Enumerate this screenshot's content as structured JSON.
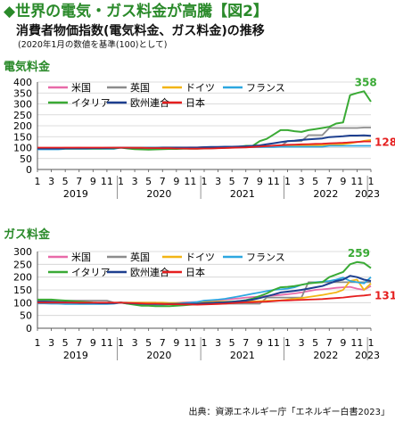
{
  "header": {
    "title": "◆世界の電気・ガス料金が高騰【図2】",
    "subtitle": "消費者物価指数(電気料金、ガス料金)の推移",
    "note": "(2020年1月の数値を基準(100)として)"
  },
  "source": "出典：資源エネルギー庁「エネルギー白書2023」",
  "colors": {
    "米国": "#e86aa8",
    "英国": "#8c8c8c",
    "ドイツ": "#f2b515",
    "フランス": "#2da7e0",
    "イタリア": "#3aaa35",
    "欧州連合": "#1d3f8f",
    "日本": "#e51f1f",
    "title_green": "#2a8a2a"
  },
  "chart_data": [
    {
      "type": "line",
      "title": "電気料金",
      "ylim": [
        0,
        400
      ],
      "yticks": [
        0,
        50,
        100,
        150,
        200,
        250,
        300,
        350,
        400
      ],
      "x_month_labels": [
        "1",
        "3",
        "5",
        "7",
        "9",
        "11",
        "1",
        "3",
        "5",
        "7",
        "9",
        "11",
        "1",
        "3",
        "5",
        "7",
        "9",
        "11",
        "1",
        "3",
        "5",
        "7",
        "9",
        "11",
        "1"
      ],
      "x_year_labels": [
        "2019",
        "2020",
        "2021",
        "2022",
        "2023"
      ],
      "grid": true,
      "legend_placement": "top",
      "annotations": [
        {
          "text": "358",
          "series": "イタリア",
          "color": "#3aaa35"
        },
        {
          "text": "128",
          "series": "日本",
          "color": "#e51f1f"
        }
      ],
      "series": [
        {
          "name": "米国",
          "values": [
            97,
            97,
            98,
            98,
            99,
            99,
            100,
            99,
            99,
            99,
            99,
            99,
            100,
            100,
            100,
            100,
            100,
            100,
            100,
            100,
            100,
            100,
            101,
            101,
            102,
            102,
            103,
            103,
            104,
            104,
            105,
            105,
            106,
            107,
            108,
            109,
            110,
            111,
            112,
            113,
            114,
            115,
            117,
            120,
            122,
            124,
            126,
            128,
            130
          ]
        },
        {
          "name": "英国",
          "values": [
            96,
            96,
            97,
            97,
            97,
            97,
            98,
            98,
            98,
            98,
            99,
            99,
            100,
            100,
            100,
            100,
            100,
            100,
            101,
            101,
            101,
            101,
            101,
            101,
            102,
            102,
            102,
            103,
            103,
            103,
            104,
            104,
            104,
            106,
            106,
            106,
            130,
            130,
            130,
            157,
            157,
            157,
            190,
            190,
            190,
            190,
            190,
            192,
            192
          ]
        },
        {
          "name": "ドイツ",
          "values": [
            96,
            96,
            96,
            96,
            97,
            97,
            97,
            97,
            98,
            98,
            98,
            99,
            100,
            100,
            100,
            100,
            100,
            100,
            100,
            98,
            98,
            98,
            98,
            98,
            102,
            102,
            102,
            103,
            103,
            103,
            104,
            104,
            104,
            105,
            105,
            106,
            108,
            109,
            110,
            110,
            110,
            111,
            112,
            113,
            116,
            120,
            125,
            131,
            135
          ]
        },
        {
          "name": "フランス",
          "values": [
            92,
            92,
            92,
            92,
            94,
            94,
            94,
            94,
            94,
            94,
            94,
            94,
            100,
            100,
            100,
            100,
            100,
            100,
            100,
            100,
            100,
            100,
            100,
            100,
            101,
            101,
            101,
            101,
            101,
            101,
            102,
            102,
            102,
            103,
            103,
            104,
            104,
            104,
            104,
            104,
            104,
            104,
            108,
            108,
            108,
            108,
            108,
            108,
            108
          ]
        },
        {
          "name": "イタリア",
          "values": [
            98,
            98,
            97,
            96,
            96,
            96,
            96,
            96,
            96,
            96,
            97,
            97,
            100,
            96,
            93,
            92,
            91,
            92,
            93,
            94,
            94,
            95,
            95,
            95,
            96,
            97,
            98,
            99,
            100,
            104,
            108,
            108,
            130,
            140,
            160,
            180,
            180,
            175,
            172,
            180,
            185,
            190,
            195,
            210,
            215,
            340,
            350,
            358,
            310
          ]
        },
        {
          "name": "欧州連合",
          "values": [
            96,
            96,
            96,
            96,
            97,
            97,
            97,
            97,
            98,
            98,
            98,
            99,
            100,
            99,
            99,
            99,
            99,
            99,
            100,
            100,
            100,
            100,
            100,
            100,
            102,
            103,
            103,
            104,
            104,
            105,
            106,
            108,
            110,
            115,
            120,
            125,
            130,
            132,
            135,
            138,
            140,
            142,
            148,
            150,
            152,
            155,
            155,
            156,
            154
          ]
        },
        {
          "name": "日本",
          "values": [
            100,
            100,
            100,
            100,
            100,
            100,
            100,
            100,
            100,
            100,
            100,
            100,
            100,
            100,
            99,
            99,
            98,
            98,
            97,
            97,
            96,
            96,
            95,
            95,
            96,
            96,
            97,
            98,
            99,
            100,
            101,
            103,
            105,
            107,
            109,
            111,
            113,
            114,
            115,
            116,
            117,
            118,
            120,
            121,
            122,
            124,
            126,
            128,
            128
          ]
        }
      ]
    },
    {
      "type": "line",
      "title": "ガス料金",
      "ylim": [
        0,
        300
      ],
      "yticks": [
        0,
        50,
        100,
        150,
        200,
        250,
        300
      ],
      "x_month_labels": [
        "1",
        "3",
        "5",
        "7",
        "9",
        "11",
        "1",
        "3",
        "5",
        "7",
        "9",
        "11",
        "1",
        "3",
        "5",
        "7",
        "9",
        "11",
        "1",
        "3",
        "5",
        "7",
        "9",
        "11",
        "1"
      ],
      "x_year_labels": [
        "2019",
        "2020",
        "2021",
        "2022",
        "2023"
      ],
      "grid": true,
      "legend_placement": "top",
      "annotations": [
        {
          "text": "259",
          "series": "イタリア",
          "color": "#3aaa35"
        },
        {
          "text": "131",
          "series": "日本",
          "color": "#e51f1f"
        }
      ],
      "series": [
        {
          "name": "米国",
          "values": [
            100,
            99,
            98,
            97,
            97,
            97,
            97,
            97,
            97,
            98,
            98,
            99,
            100,
            98,
            97,
            96,
            96,
            96,
            97,
            98,
            99,
            101,
            102,
            103,
            106,
            108,
            110,
            112,
            114,
            117,
            120,
            122,
            124,
            126,
            128,
            130,
            133,
            136,
            140,
            145,
            150,
            152,
            155,
            158,
            160,
            162,
            155,
            150,
            165
          ]
        },
        {
          "name": "英国",
          "values": [
            108,
            108,
            108,
            108,
            108,
            108,
            108,
            108,
            108,
            108,
            108,
            100,
            100,
            100,
            100,
            100,
            100,
            100,
            96,
            96,
            96,
            96,
            96,
            96,
            96,
            96,
            96,
            96,
            96,
            96,
            96,
            96,
            96,
            120,
            120,
            120,
            120,
            120,
            120,
            180,
            180,
            180,
            180,
            180,
            180,
            180,
            180,
            180,
            180
          ]
        },
        {
          "name": "ドイツ",
          "values": [
            99,
            99,
            99,
            99,
            99,
            99,
            99,
            99,
            99,
            99,
            99,
            99,
            100,
            100,
            100,
            100,
            100,
            100,
            100,
            99,
            99,
            99,
            99,
            99,
            102,
            103,
            104,
            104,
            104,
            105,
            105,
            105,
            106,
            107,
            108,
            109,
            112,
            115,
            118,
            122,
            126,
            130,
            135,
            140,
            150,
            185,
            190,
            150,
            175
          ]
        },
        {
          "name": "フランス",
          "values": [
            97,
            97,
            96,
            96,
            95,
            95,
            95,
            95,
            95,
            95,
            95,
            96,
            100,
            96,
            94,
            92,
            90,
            90,
            92,
            94,
            96,
            98,
            100,
            103,
            108,
            110,
            112,
            115,
            120,
            125,
            130,
            135,
            140,
            145,
            150,
            152,
            155,
            160,
            170,
            175,
            180,
            182,
            185,
            190,
            198,
            185,
            180,
            175,
            200
          ]
        },
        {
          "name": "イタリア",
          "values": [
            112,
            112,
            112,
            110,
            108,
            106,
            104,
            102,
            100,
            99,
            99,
            99,
            100,
            96,
            92,
            88,
            88,
            86,
            86,
            86,
            88,
            90,
            92,
            94,
            98,
            99,
            100,
            102,
            104,
            106,
            110,
            116,
            126,
            136,
            150,
            160,
            162,
            165,
            170,
            175,
            178,
            180,
            200,
            210,
            220,
            250,
            259,
            255,
            235
          ]
        },
        {
          "name": "欧州連合",
          "values": [
            104,
            104,
            103,
            102,
            101,
            100,
            99,
            99,
            99,
            98,
            98,
            98,
            100,
            98,
            97,
            96,
            95,
            95,
            95,
            95,
            95,
            95,
            95,
            96,
            98,
            99,
            100,
            101,
            103,
            106,
            108,
            112,
            118,
            125,
            132,
            140,
            143,
            146,
            150,
            155,
            160,
            165,
            175,
            185,
            190,
            205,
            200,
            190,
            185
          ]
        },
        {
          "name": "日本",
          "values": [
            100,
            100,
            100,
            100,
            100,
            100,
            100,
            100,
            100,
            100,
            100,
            100,
            100,
            99,
            98,
            97,
            96,
            96,
            95,
            94,
            94,
            93,
            93,
            92,
            93,
            94,
            95,
            96,
            98,
            100,
            101,
            102,
            103,
            104,
            106,
            108,
            109,
            110,
            111,
            112,
            113,
            114,
            116,
            118,
            120,
            123,
            126,
            128,
            131
          ]
        }
      ]
    }
  ]
}
